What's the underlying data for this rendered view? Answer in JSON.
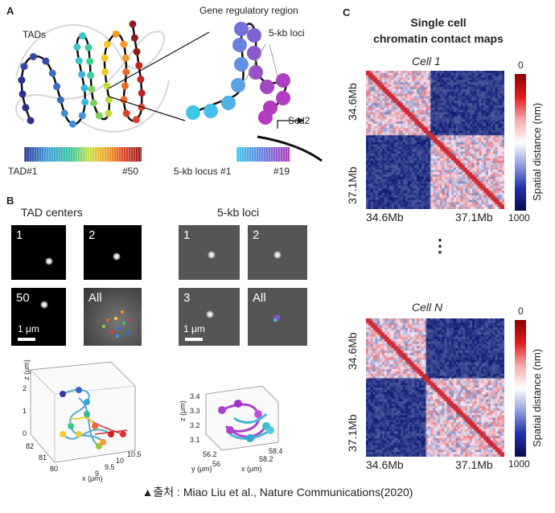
{
  "panel_a": {
    "letter": "A",
    "tads_label": "TADs",
    "gene_reg_label": "Gene regulatory region",
    "loci_label": "5-kb loci",
    "scd2_label": "Scd2",
    "tad_start": "TAD#1",
    "tad_end": "#50",
    "locus_start": "5-kb locus #1",
    "locus_end": "#19"
  },
  "panel_b": {
    "letter": "B",
    "tad_centers_title": "TAD centers",
    "loci_title": "5-kb loci",
    "tad_tiles": [
      "1",
      "2",
      "50",
      "All"
    ],
    "loci_tiles": [
      "1",
      "2",
      "3",
      "All"
    ],
    "scale_label": "1 μm",
    "plot3d_left": {
      "z_label": "z (μm)",
      "x_label": "x (μm)",
      "z_ticks": [
        "2",
        "1",
        "0"
      ],
      "y_ticks": [
        "82",
        "81",
        "80"
      ],
      "x_ticks": [
        "9",
        "9.5",
        "10",
        "10.5"
      ]
    },
    "plot3d_right": {
      "z_label": "z (μm)",
      "y_label": "y (μm)",
      "x_label": "x (μm)",
      "z_ticks": [
        "3.4",
        "3.3",
        "3.2",
        "3.1"
      ],
      "y_ticks": [
        "56.2",
        "56"
      ],
      "x_ticks": [
        "58.4",
        "58.2"
      ]
    }
  },
  "panel_c": {
    "letter": "C",
    "title_line1": "Single cell",
    "title_line2": "chromatin contact maps",
    "cell1": "Cell 1",
    "cellN": "Cell N",
    "axis_start": "34.6Mb",
    "axis_end": "37.1Mb",
    "colorbar_min": "0",
    "colorbar_max": "1000",
    "colorbar_label": "Spatial distance (nm)",
    "ellipsis": "⋮"
  },
  "caption": "▲출처 : Miao Liu et al., Nature Communications(2020)",
  "colors": {
    "red": "#d7191c",
    "blue": "#0a1f7a",
    "white": "#ffffff"
  }
}
